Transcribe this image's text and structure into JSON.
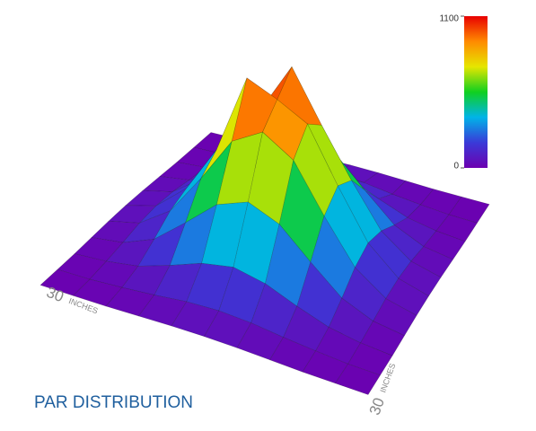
{
  "chart_data": {
    "type": "surface",
    "title": "PAR DISTRIBUTION",
    "x_extent": {
      "length": 30,
      "unit": "INCHES"
    },
    "y_extent": {
      "length": 30,
      "unit": "INCHES"
    },
    "zlim": [
      0,
      1100
    ],
    "zticks": [
      0,
      1100
    ],
    "colorscale": [
      "#6c00b0",
      "#3a3ad8",
      "#00b4e8",
      "#10d020",
      "#e6e600",
      "#ff8a00",
      "#e80000"
    ],
    "z": [
      [
        3,
        5,
        8,
        15,
        22,
        25,
        22,
        15,
        8,
        5,
        3
      ],
      [
        5,
        10,
        25,
        45,
        70,
        80,
        70,
        45,
        25,
        10,
        5
      ],
      [
        8,
        25,
        60,
        130,
        210,
        250,
        210,
        130,
        60,
        25,
        8
      ],
      [
        15,
        45,
        130,
        300,
        480,
        560,
        480,
        300,
        130,
        45,
        15
      ],
      [
        22,
        70,
        210,
        480,
        780,
        1080,
        780,
        480,
        210,
        70,
        22
      ],
      [
        25,
        80,
        250,
        560,
        900,
        1000,
        1100,
        560,
        250,
        80,
        25
      ],
      [
        22,
        70,
        210,
        480,
        780,
        900,
        780,
        480,
        210,
        70,
        22
      ],
      [
        15,
        45,
        130,
        300,
        480,
        560,
        480,
        300,
        130,
        45,
        15
      ],
      [
        8,
        25,
        60,
        130,
        210,
        250,
        210,
        130,
        60,
        25,
        8
      ],
      [
        5,
        10,
        25,
        45,
        70,
        80,
        70,
        45,
        25,
        10,
        5
      ],
      [
        3,
        5,
        8,
        15,
        22,
        25,
        22,
        15,
        8,
        5,
        3
      ]
    ]
  }
}
